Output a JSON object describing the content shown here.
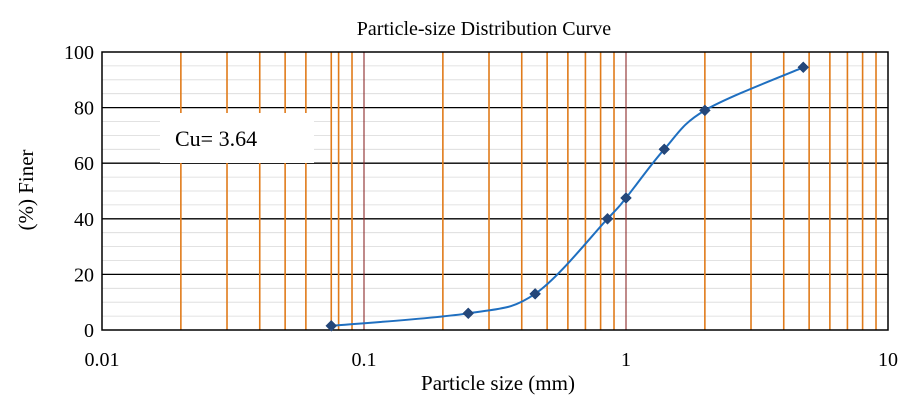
{
  "chart_data": {
    "type": "scatter",
    "title": "Particle-size Distribution Curve",
    "xlabel": "Particle size (mm)",
    "ylabel": "(%) Finer",
    "x_scale": "log",
    "xlim": [
      0.01,
      10
    ],
    "ylim": [
      0,
      100
    ],
    "x_ticks": [
      0.01,
      0.1,
      1,
      10
    ],
    "x_tick_labels": [
      "0.01",
      "0.1",
      "1",
      "10"
    ],
    "y_ticks": [
      0,
      20,
      40,
      60,
      80,
      100
    ],
    "y_tick_labels": [
      "0",
      "20",
      "40",
      "60",
      "80",
      "100"
    ],
    "grid": true,
    "annotation": "Cu= 3.64",
    "series": [
      {
        "color": "#1f6fc0",
        "marker_color": "#24477a",
        "points": [
          {
            "x": 0.075,
            "y": 1.5
          },
          {
            "x": 0.25,
            "y": 6
          },
          {
            "x": 0.45,
            "y": 13
          },
          {
            "x": 0.85,
            "y": 40
          },
          {
            "x": 1.0,
            "y": 47.5
          },
          {
            "x": 1.4,
            "y": 65
          },
          {
            "x": 2.0,
            "y": 79
          },
          {
            "x": 4.75,
            "y": 94.5
          }
        ]
      }
    ],
    "orange_vertical_lines": [
      0.02,
      0.03,
      0.04,
      0.05,
      0.06,
      0.075,
      0.08,
      0.09,
      0.2,
      0.3,
      0.4,
      0.5,
      0.6,
      0.7,
      0.8,
      0.9,
      2,
      3,
      4,
      5,
      6,
      7,
      8,
      9
    ],
    "maroon_vertical_lines": [
      0.1,
      1
    ],
    "orange_color": "#e07b1a",
    "maroon_color": "#8b2a2a"
  }
}
